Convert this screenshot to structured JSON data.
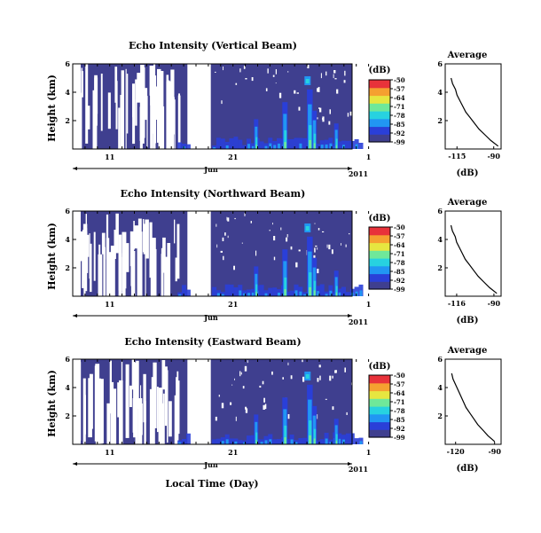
{
  "figure": {
    "x_axis_title": "Local Time (Day)",
    "year_label": "2011",
    "month_label": "Jun",
    "day_tick_labels": [
      "11",
      "21",
      "1"
    ],
    "colorbar_unit": "(dB)",
    "average_title": "Average",
    "average_xlabel": "(dB)",
    "height_axis_label": "Height (km)"
  },
  "colormap": {
    "stops": [
      "#3f3f8f",
      "#2a3fd8",
      "#2196f3",
      "#27d2e0",
      "#6fe89a",
      "#e6e640",
      "#f5a030",
      "#e8323a"
    ]
  },
  "chart_data": [
    {
      "type": "heatmap",
      "title": "Echo Intensity (Vertical Beam)",
      "ylabel": "Height (km)",
      "xlabel": "",
      "ylim": [
        0,
        6
      ],
      "y_ticks": [
        2,
        4,
        6
      ],
      "x_ticks": [
        "11",
        "21",
        "1"
      ],
      "colorbar_unit": "(dB)",
      "colorbar_ticks": [
        -50,
        -57,
        -64,
        -71,
        -78,
        -85,
        -92,
        -99
      ],
      "color_range": [
        -99,
        -50
      ],
      "coverage_gaps_day": [
        [
          17.3,
          19.2
        ]
      ],
      "average_profile": {
        "title": "Average",
        "xlabel": "(dB)",
        "x_ticks": [
          -115,
          -90
        ],
        "y_ticks": [
          2,
          4,
          6
        ],
        "height_km": [
          5.0,
          4.6,
          4.2,
          3.8,
          3.4,
          3.0,
          2.6,
          2.2,
          1.8,
          1.4,
          1.0,
          0.6,
          0.2
        ],
        "values_db": [
          -119,
          -118,
          -116,
          -115,
          -113,
          -111,
          -109,
          -106,
          -103,
          -100,
          -96,
          -92,
          -87
        ]
      }
    },
    {
      "type": "heatmap",
      "title": "Echo Intensity (Northward Beam)",
      "ylabel": "Height (km)",
      "xlabel": "",
      "ylim": [
        0,
        6
      ],
      "y_ticks": [
        2,
        4,
        6
      ],
      "x_ticks": [
        "11",
        "21",
        "1"
      ],
      "colorbar_unit": "(dB)",
      "colorbar_ticks": [
        -50,
        -57,
        -64,
        -71,
        -78,
        -85,
        -92,
        -99
      ],
      "color_range": [
        -99,
        -50
      ],
      "coverage_gaps_day": [
        [
          17.3,
          19.2
        ]
      ],
      "average_profile": {
        "title": "Average",
        "xlabel": "(dB)",
        "x_ticks": [
          -116,
          -90
        ],
        "y_ticks": [
          2,
          4,
          6
        ],
        "height_km": [
          5.0,
          4.6,
          4.2,
          3.8,
          3.4,
          3.0,
          2.6,
          2.2,
          1.8,
          1.4,
          1.0,
          0.6,
          0.2
        ],
        "values_db": [
          -120,
          -119,
          -117,
          -116,
          -114,
          -112,
          -110,
          -107,
          -104,
          -101,
          -97,
          -93,
          -88
        ]
      }
    },
    {
      "type": "heatmap",
      "title": "Echo Intensity (Eastward Beam)",
      "ylabel": "Height (km)",
      "xlabel": "Local Time (Day)",
      "ylim": [
        0,
        6
      ],
      "y_ticks": [
        2,
        4,
        6
      ],
      "x_ticks": [
        "11",
        "21",
        "1"
      ],
      "colorbar_unit": "(dB)",
      "colorbar_ticks": [
        -50,
        -57,
        -64,
        -71,
        -78,
        -85,
        -92,
        -99
      ],
      "color_range": [
        -99,
        -50
      ],
      "coverage_gaps_day": [
        [
          17.3,
          19.2
        ]
      ],
      "average_profile": {
        "title": "Average",
        "xlabel": "(dB)",
        "x_ticks": [
          -120,
          -90
        ],
        "y_ticks": [
          2,
          4,
          6
        ],
        "height_km": [
          5.0,
          4.6,
          4.2,
          3.8,
          3.4,
          3.0,
          2.6,
          2.2,
          1.8,
          1.4,
          1.0,
          0.6,
          0.2
        ],
        "values_db": [
          -123,
          -122,
          -120,
          -118,
          -116,
          -114,
          -112,
          -109,
          -106,
          -103,
          -99,
          -95,
          -90
        ]
      }
    }
  ]
}
